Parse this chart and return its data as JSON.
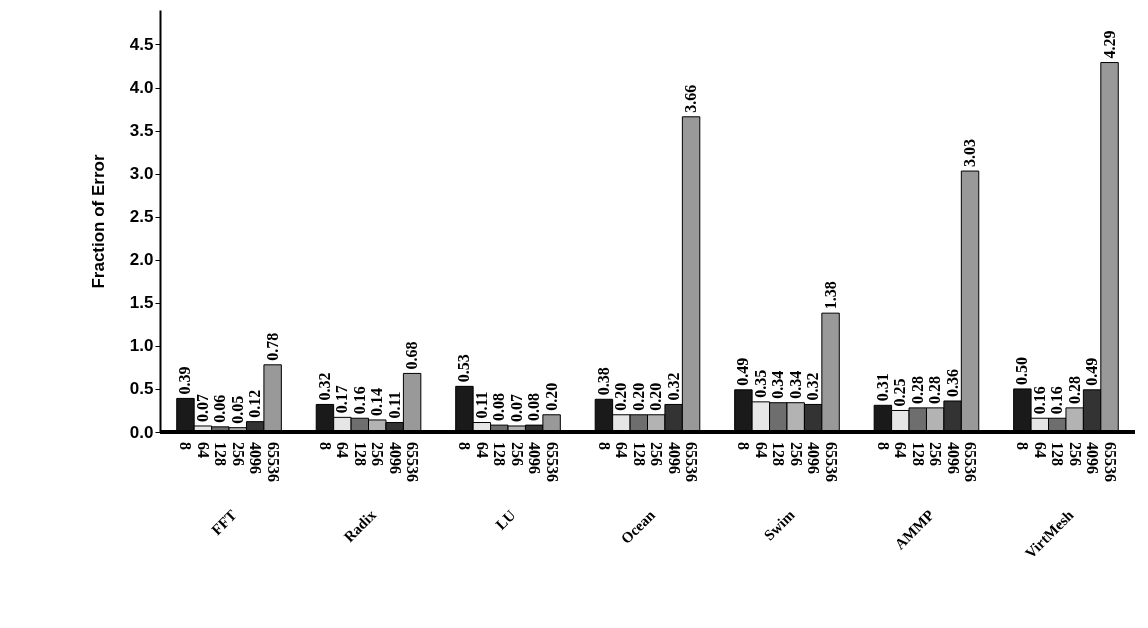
{
  "chart_data": {
    "type": "bar",
    "ylabel": "Fraction of Error",
    "categories": [
      "FFT",
      "Radix",
      "LU",
      "Ocean",
      "Swim",
      "AMMP",
      "VirtMesh"
    ],
    "series": [
      {
        "name": "8",
        "color": "#1a1a1a",
        "values": [
          0.39,
          0.32,
          0.53,
          0.38,
          0.49,
          0.31,
          0.5
        ],
        "value_labels": [
          "0.39",
          "0.32",
          "0.53",
          "0.38",
          "0.49",
          "0.31",
          "0.50"
        ]
      },
      {
        "name": "64",
        "color": "#e6e6e6",
        "values": [
          0.07,
          0.17,
          0.11,
          0.2,
          0.35,
          0.25,
          0.16
        ],
        "value_labels": [
          "0.07",
          "0.17",
          "0.11",
          "0.20",
          "0.35",
          "0.25",
          "0.16"
        ]
      },
      {
        "name": "128",
        "color": "#6e6e6e",
        "values": [
          0.06,
          0.16,
          0.08,
          0.2,
          0.34,
          0.28,
          0.16
        ],
        "value_labels": [
          "0.06",
          "0.16",
          "0.08",
          "0.20",
          "0.34",
          "0.28",
          "0.16"
        ]
      },
      {
        "name": "256",
        "color": "#b3b3b3",
        "values": [
          0.05,
          0.14,
          0.07,
          0.2,
          0.34,
          0.28,
          0.28
        ],
        "value_labels": [
          "0.05",
          "0.14",
          "0.07",
          "0.20",
          "0.34",
          "0.28",
          "0.28"
        ]
      },
      {
        "name": "4096",
        "color": "#333333",
        "values": [
          0.12,
          0.11,
          0.08,
          0.32,
          0.32,
          0.36,
          0.49
        ],
        "value_labels": [
          "0.12",
          "0.11",
          "0.08",
          "0.32",
          "0.32",
          "0.36",
          "0.49"
        ]
      },
      {
        "name": "65536",
        "color": "#999999",
        "values": [
          0.78,
          0.68,
          0.2,
          3.66,
          1.38,
          3.03,
          4.29
        ],
        "value_labels": [
          "0.78",
          "0.68",
          "0.20",
          "3.66",
          "1.38",
          "3.03",
          "4.29"
        ]
      }
    ],
    "ylim": [
      0,
      4.9
    ],
    "yticks": [
      {
        "value": 0,
        "label": "0.0"
      },
      0.5,
      {
        "value": 1,
        "label": "1.0"
      },
      1.5,
      {
        "value": 2,
        "label": "2.0"
      },
      2.5,
      {
        "value": 3,
        "label": "3.0"
      },
      3.5,
      {
        "value": 4,
        "label": "4.0"
      },
      4.5
    ],
    "grid": false
  }
}
